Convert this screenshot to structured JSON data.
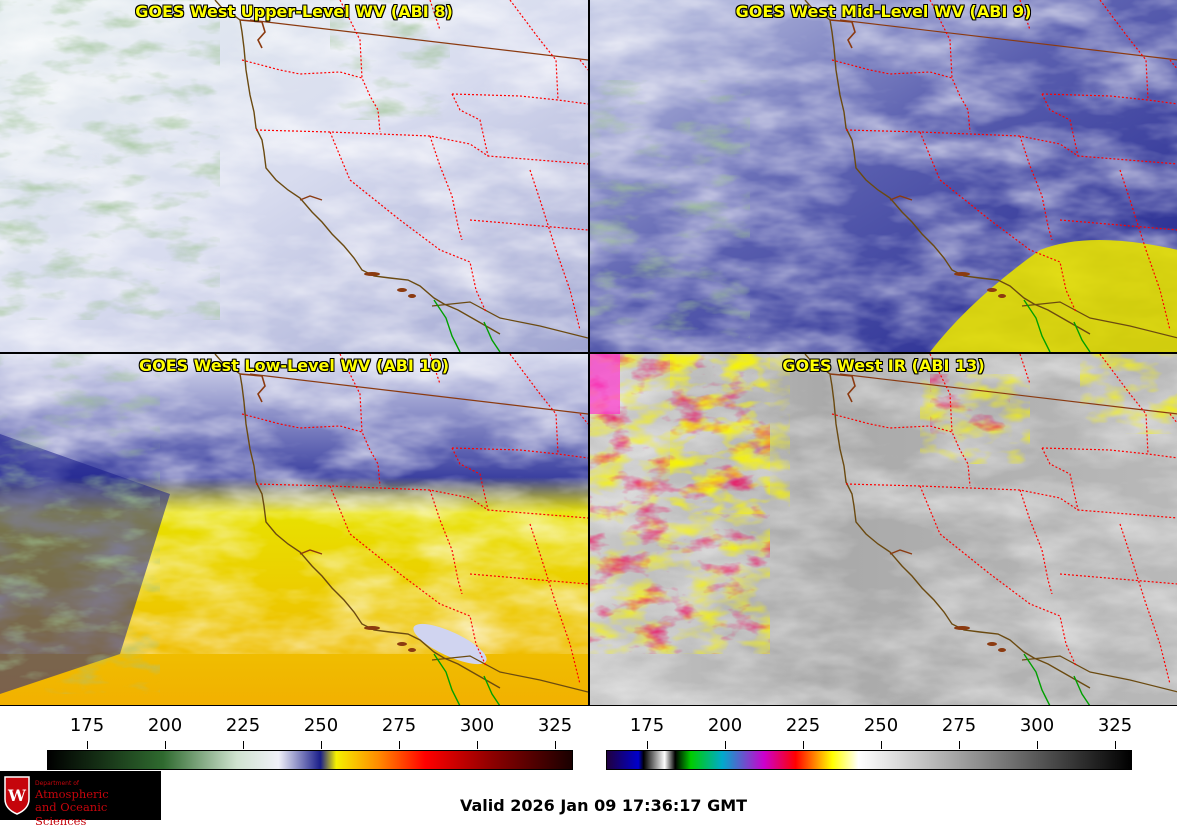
{
  "panels": [
    {
      "id": "wv8",
      "title": "GOES West Upper-Level WV (ABI 8)"
    },
    {
      "id": "wv9",
      "title": "GOES West Mid-Level WV (ABI 9)"
    },
    {
      "id": "wv10",
      "title": "GOES West Low-Level WV (ABI 10)"
    },
    {
      "id": "ir13",
      "title": "GOES West IR (ABI 13)"
    }
  ],
  "colorbars": {
    "left": {
      "ticks": [
        "175",
        "200",
        "225",
        "250",
        "275",
        "300",
        "325"
      ]
    },
    "right": {
      "ticks": [
        "175",
        "200",
        "225",
        "250",
        "275",
        "300",
        "325"
      ]
    }
  },
  "logo": {
    "dept": "Department of",
    "line1": "Atmospheric",
    "line2": "and Oceanic Sciences",
    "crest_letter": "W"
  },
  "valid_time": "Valid 2026 Jan 09 17:36:17 GMT",
  "colors": {
    "title_text": "#ffff00",
    "state_borders": "#ff0000",
    "coastline": "#8b5a00",
    "mexico_border": "#00a000",
    "logo_red": "#c5050c"
  }
}
